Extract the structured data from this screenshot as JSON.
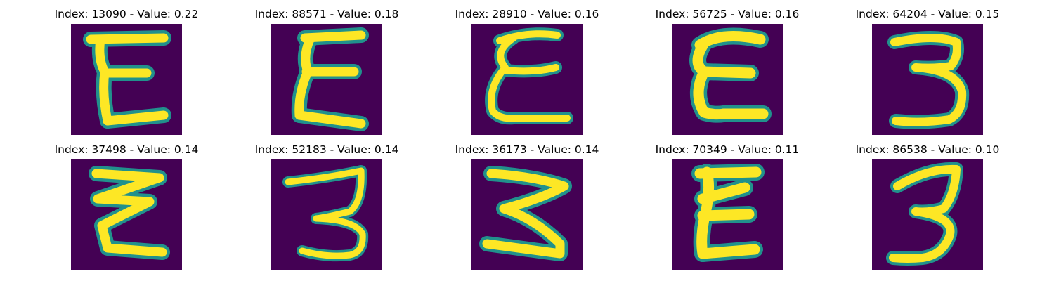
{
  "colors": {
    "background": "#440154",
    "stroke_core": "#fde725",
    "stroke_mid": "#5ec962",
    "stroke_edge": "#21918c"
  },
  "panels": [
    {
      "index": "13090",
      "value": "0.22",
      "title": "Index: 13090 - Value: 0.22",
      "glyph": "E-narrow"
    },
    {
      "index": "88571",
      "value": "0.18",
      "title": "Index: 88571 - Value: 0.18",
      "glyph": "E-slanted"
    },
    {
      "index": "28910",
      "value": "0.16",
      "title": "Index: 28910 - Value: 0.16",
      "glyph": "E-curly"
    },
    {
      "index": "56725",
      "value": "0.16",
      "title": "Index: 56725 - Value: 0.16",
      "glyph": "E-round"
    },
    {
      "index": "64204",
      "value": "0.15",
      "title": "Index: 64204 - Value: 0.15",
      "glyph": "three"
    },
    {
      "index": "37498",
      "value": "0.14",
      "title": "Index: 37498 - Value: 0.14",
      "glyph": "zigzag-left"
    },
    {
      "index": "52183",
      "value": "0.14",
      "title": "Index: 52183 - Value: 0.14",
      "glyph": "three-thin"
    },
    {
      "index": "36173",
      "value": "0.14",
      "title": "Index: 36173 - Value: 0.14",
      "glyph": "zigzag-right"
    },
    {
      "index": "70349",
      "value": "0.11",
      "title": "Index: 70349 - Value: 0.11",
      "glyph": "E-bold"
    },
    {
      "index": "86538",
      "value": "0.10",
      "title": "Index: 86538 - Value: 0.10",
      "glyph": "three-tall"
    }
  ]
}
